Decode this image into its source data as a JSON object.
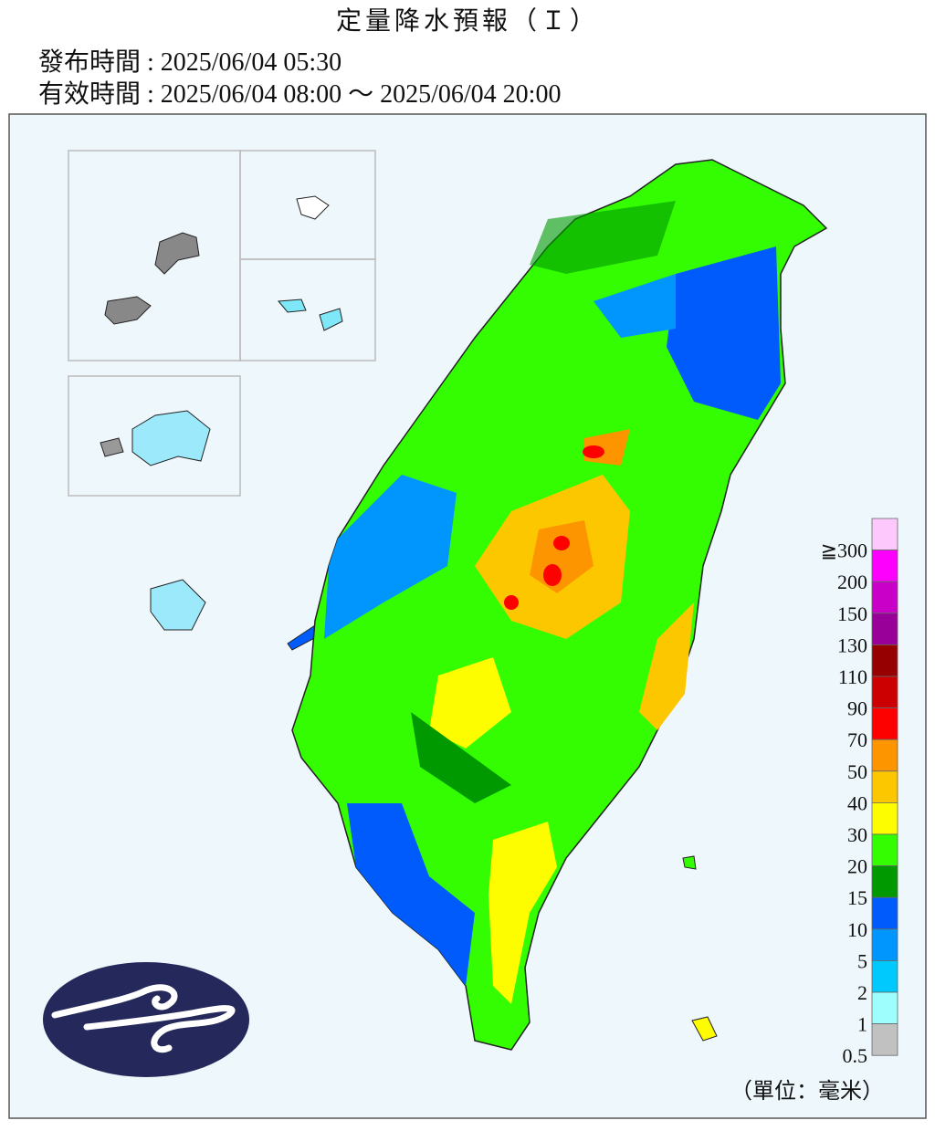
{
  "header": {
    "title": "定量降水預報（Ｉ）",
    "issue_time": "發布時間 : 2025/06/04 05:30",
    "valid_time": "有效時間 : 2025/06/04 08:00 ～ 2025/06/04 20:00"
  },
  "legend": {
    "unit": "（單位：毫米）",
    "entries": [
      {
        "label": "≧300",
        "color": "#fdc9fd"
      },
      {
        "label": "200",
        "color": "#fd00fd"
      },
      {
        "label": "150",
        "color": "#c800c8"
      },
      {
        "label": "130",
        "color": "#990099"
      },
      {
        "label": "110",
        "color": "#960000"
      },
      {
        "label": "90",
        "color": "#cc0000"
      },
      {
        "label": "70",
        "color": "#fd0000"
      },
      {
        "label": "50",
        "color": "#fd9500"
      },
      {
        "label": "40",
        "color": "#fdc700"
      },
      {
        "label": "30",
        "color": "#fdfd00"
      },
      {
        "label": "20",
        "color": "#33fd00"
      },
      {
        "label": "15",
        "color": "#009900"
      },
      {
        "label": "10",
        "color": "#005bfd"
      },
      {
        "label": "5",
        "color": "#0096fd"
      },
      {
        "label": "2",
        "color": "#00c9fd"
      },
      {
        "label": "1",
        "color": "#9efdfd"
      },
      {
        "label": "0.5",
        "color": "#c1c1c1"
      }
    ]
  }
}
